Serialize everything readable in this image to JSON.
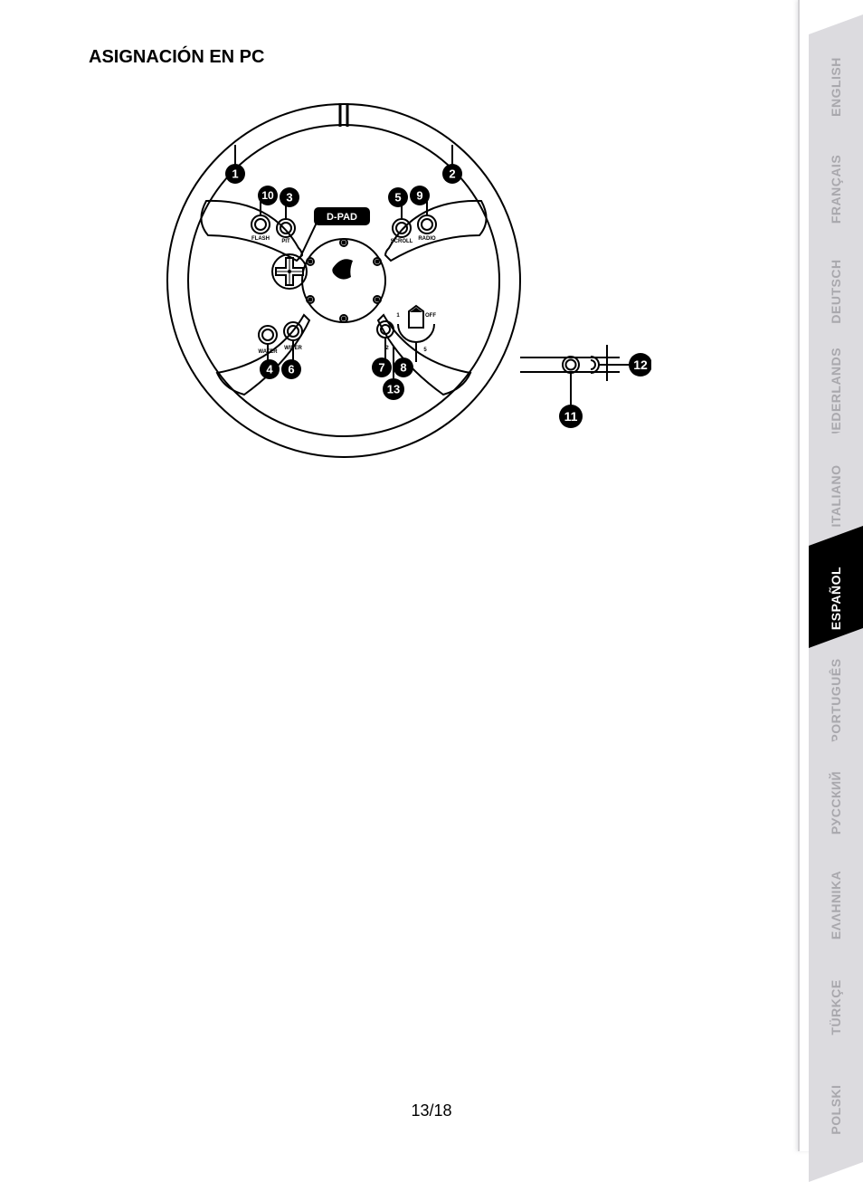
{
  "title": "ASIGNACIÓN EN PC",
  "page_number": "13/18",
  "dpad_label": "D-PAD",
  "wheel_labels": {
    "flash": "FLASH",
    "pit": "PIT",
    "scroll": "SCROLL",
    "radio": "RADIO",
    "water": "WATER",
    "wiper": "WIPER"
  },
  "callouts": [
    "1",
    "2",
    "3",
    "4",
    "5",
    "6",
    "7",
    "8",
    "9",
    "10",
    "11",
    "12",
    "13"
  ],
  "languages": [
    {
      "label": "ENGLISH",
      "active": false
    },
    {
      "label": "FRANÇAIS",
      "active": false
    },
    {
      "label": "DEUTSCH",
      "active": false
    },
    {
      "label": "NEDERLANDS",
      "active": false
    },
    {
      "label": "ITALIANO",
      "active": false
    },
    {
      "label": "ESPAÑOL",
      "active": true
    },
    {
      "label": "PORTUGUÊS",
      "active": false
    },
    {
      "label": "РУССКИЙ",
      "active": false
    },
    {
      "label": "ΕΛΛΗΝΙΚΑ",
      "active": false
    },
    {
      "label": "TÜRKÇE",
      "active": false
    },
    {
      "label": "POLSKI",
      "active": false
    }
  ],
  "colors": {
    "tab_inactive_bg": "#dcdbdf",
    "tab_inactive_fg": "#a9a8ad",
    "tab_active_bg": "#000000",
    "tab_active_fg": "#ffffff"
  }
}
